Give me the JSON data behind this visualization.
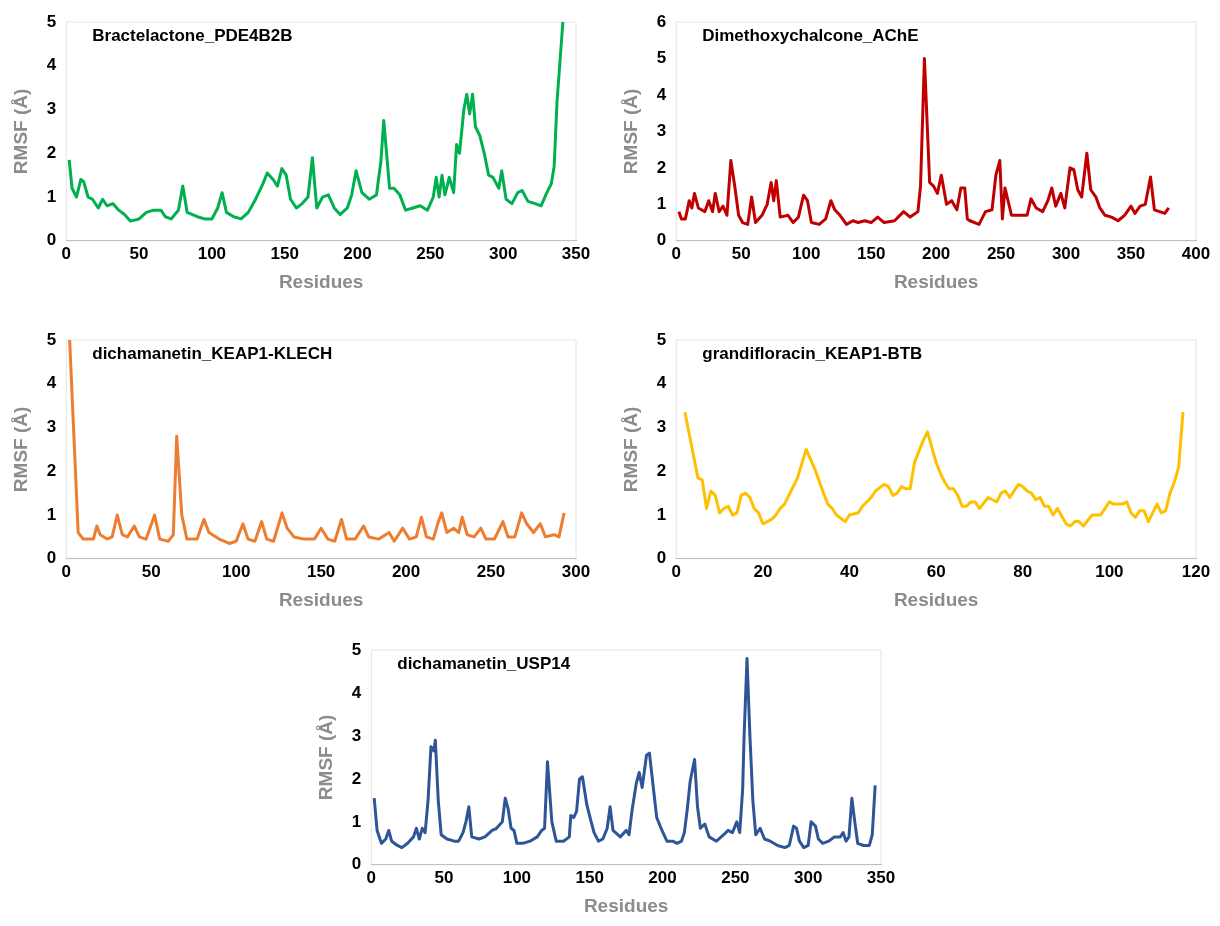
{
  "chart_data": [
    {
      "type": "line",
      "title": "Bractelactone_PDE4B2B",
      "xlabel": "Residues",
      "ylabel": "RMSF (Å)",
      "xlim": [
        0,
        350
      ],
      "xticks": [
        0,
        50,
        100,
        150,
        200,
        250,
        300,
        350
      ],
      "ylim": [
        0,
        5
      ],
      "yticks": [
        0,
        1,
        2,
        3,
        4,
        5
      ],
      "grid": false,
      "legend": false,
      "marker": "none",
      "line_style": "solid",
      "x": [
        2,
        4,
        7,
        10,
        12,
        15,
        18,
        22,
        25,
        28,
        32,
        36,
        40,
        44,
        50,
        55,
        60,
        65,
        68,
        72,
        77,
        80,
        83,
        90,
        95,
        100,
        104,
        107,
        110,
        115,
        120,
        125,
        130,
        135,
        138,
        142,
        145,
        148,
        151,
        154,
        158,
        162,
        166,
        169,
        172,
        176,
        180,
        184,
        188,
        193,
        196,
        199,
        203,
        208,
        213,
        216,
        218,
        222,
        225,
        229,
        233,
        238,
        243,
        248,
        252,
        254,
        256,
        258,
        260,
        263,
        266,
        268,
        270,
        273,
        275,
        277,
        279,
        281,
        284,
        287,
        290,
        293,
        297,
        299,
        302,
        306,
        310,
        313,
        317,
        322,
        326,
        330,
        333,
        335,
        337,
        339,
        341
      ],
      "series": [
        {
          "color": "#00b050",
          "values": [
            1.85,
            1.2,
            1.0,
            1.4,
            1.35,
            1.0,
            0.95,
            0.75,
            0.95,
            0.8,
            0.85,
            0.7,
            0.6,
            0.45,
            0.5,
            0.65,
            0.7,
            0.7,
            0.55,
            0.5,
            0.7,
            1.25,
            0.65,
            0.55,
            0.5,
            0.5,
            0.75,
            1.1,
            0.65,
            0.55,
            0.5,
            0.65,
            0.95,
            1.3,
            1.55,
            1.4,
            1.25,
            1.65,
            1.5,
            0.95,
            0.75,
            0.85,
            1.0,
            1.9,
            0.75,
            1.0,
            1.05,
            0.75,
            0.6,
            0.75,
            1.05,
            1.6,
            1.1,
            0.95,
            1.05,
            1.8,
            2.75,
            1.2,
            1.2,
            1.05,
            0.7,
            0.75,
            0.8,
            0.7,
            1.0,
            1.45,
            1.0,
            1.5,
            1.05,
            1.45,
            1.1,
            2.2,
            2.0,
            3.0,
            3.35,
            2.9,
            3.35,
            2.6,
            2.4,
            2.0,
            1.5,
            1.45,
            1.2,
            1.6,
            0.95,
            0.85,
            1.1,
            1.15,
            0.9,
            0.85,
            0.8,
            1.1,
            1.3,
            1.7,
            3.2,
            4.1,
            5.0
          ]
        }
      ]
    },
    {
      "type": "line",
      "title": "Dimethoxychalcone_AChE",
      "xlabel": "Residues",
      "ylabel": "RMSF (Å)",
      "xlim": [
        0,
        400
      ],
      "xticks": [
        0,
        50,
        100,
        150,
        200,
        250,
        300,
        350,
        400
      ],
      "ylim": [
        0,
        6
      ],
      "yticks": [
        0,
        1,
        2,
        3,
        4,
        5,
        6
      ],
      "grid": false,
      "legend": false,
      "marker": "none",
      "line_style": "solid",
      "x": [
        2,
        4,
        7,
        10,
        12,
        14,
        17,
        22,
        25,
        28,
        30,
        33,
        36,
        39,
        42,
        45,
        48,
        51,
        55,
        58,
        61,
        66,
        70,
        73,
        75,
        77,
        80,
        86,
        90,
        94,
        98,
        101,
        104,
        110,
        115,
        119,
        122,
        126,
        131,
        136,
        140,
        145,
        150,
        155,
        160,
        168,
        175,
        180,
        186,
        188,
        191,
        195,
        198,
        201,
        204,
        208,
        212,
        216,
        219,
        222,
        224,
        226,
        233,
        238,
        243,
        246,
        249,
        251,
        253,
        258,
        264,
        270,
        273,
        277,
        282,
        286,
        289,
        292,
        296,
        299,
        303,
        306,
        309,
        312,
        316,
        319,
        323,
        326,
        330,
        335,
        340,
        345,
        350,
        353,
        357,
        361,
        365,
        368,
        372,
        376,
        379
      ],
      "series": [
        {
          "color": "#c00000",
          "values": [
            0.8,
            0.6,
            0.6,
            1.1,
            0.9,
            1.3,
            0.9,
            0.8,
            1.1,
            0.8,
            1.3,
            0.8,
            0.95,
            0.7,
            2.2,
            1.5,
            0.7,
            0.5,
            0.45,
            1.2,
            0.5,
            0.7,
            1.0,
            1.6,
            1.1,
            1.65,
            0.65,
            0.7,
            0.5,
            0.65,
            1.25,
            1.1,
            0.5,
            0.45,
            0.6,
            1.1,
            0.85,
            0.7,
            0.45,
            0.55,
            0.5,
            0.55,
            0.5,
            0.65,
            0.5,
            0.55,
            0.8,
            0.65,
            0.8,
            1.5,
            5.0,
            1.6,
            1.5,
            1.3,
            1.8,
            1.0,
            1.1,
            0.85,
            1.45,
            1.45,
            0.6,
            0.55,
            0.45,
            0.8,
            0.85,
            1.8,
            2.2,
            0.6,
            1.45,
            0.7,
            0.7,
            0.7,
            1.15,
            0.9,
            0.8,
            1.1,
            1.45,
            0.95,
            1.3,
            0.9,
            2.0,
            1.95,
            1.4,
            1.2,
            2.4,
            1.4,
            1.2,
            0.9,
            0.7,
            0.65,
            0.55,
            0.7,
            0.95,
            0.75,
            0.95,
            1.0,
            1.75,
            0.85,
            0.8,
            0.75,
            0.9
          ]
        }
      ]
    },
    {
      "type": "line",
      "title": "dichamanetin_KEAP1-KLECH",
      "xlabel": "Residues",
      "ylabel": "RMSF (Å)",
      "xlim": [
        0,
        300
      ],
      "xticks": [
        0,
        50,
        100,
        150,
        200,
        250,
        300
      ],
      "ylim": [
        0,
        5
      ],
      "yticks": [
        0,
        1,
        2,
        3,
        4,
        5
      ],
      "grid": false,
      "legend": false,
      "marker": "none",
      "line_style": "solid",
      "x": [
        2,
        7,
        10,
        13,
        16,
        18,
        20,
        24,
        27,
        30,
        33,
        36,
        40,
        43,
        47,
        52,
        55,
        60,
        63,
        65,
        68,
        71,
        77,
        81,
        84,
        90,
        96,
        100,
        104,
        107,
        111,
        115,
        118,
        122,
        127,
        130,
        134,
        140,
        146,
        150,
        154,
        158,
        162,
        165,
        170,
        175,
        178,
        184,
        190,
        193,
        198,
        202,
        206,
        209,
        212,
        216,
        219,
        221,
        224,
        228,
        231,
        233,
        236,
        240,
        244,
        247,
        252,
        257,
        260,
        264,
        268,
        271,
        275,
        279,
        282,
        287,
        290,
        293
      ],
      "series": [
        {
          "color": "#ed7d31",
          "values": [
            5.0,
            0.6,
            0.45,
            0.45,
            0.45,
            0.75,
            0.55,
            0.45,
            0.5,
            1.0,
            0.55,
            0.5,
            0.75,
            0.5,
            0.45,
            1.0,
            0.45,
            0.4,
            0.55,
            2.8,
            1.0,
            0.45,
            0.45,
            0.9,
            0.6,
            0.45,
            0.35,
            0.4,
            0.8,
            0.45,
            0.4,
            0.85,
            0.45,
            0.4,
            1.05,
            0.7,
            0.5,
            0.45,
            0.45,
            0.7,
            0.45,
            0.4,
            0.9,
            0.45,
            0.45,
            0.75,
            0.5,
            0.45,
            0.6,
            0.4,
            0.7,
            0.45,
            0.5,
            0.95,
            0.5,
            0.45,
            0.85,
            1.05,
            0.6,
            0.7,
            0.6,
            0.95,
            0.55,
            0.5,
            0.7,
            0.45,
            0.45,
            0.85,
            0.5,
            0.5,
            1.05,
            0.8,
            0.6,
            0.8,
            0.5,
            0.55,
            0.5,
            1.05
          ]
        }
      ]
    },
    {
      "type": "line",
      "title": "grandifloracin_KEAP1-BTB",
      "xlabel": "Residues",
      "ylabel": "RMSF (Å)",
      "xlim": [
        0,
        120
      ],
      "xticks": [
        0,
        20,
        40,
        60,
        80,
        100,
        120
      ],
      "ylim": [
        0,
        5
      ],
      "yticks": [
        0,
        1,
        2,
        3,
        4,
        5
      ],
      "grid": false,
      "legend": false,
      "marker": "none",
      "line_style": "solid",
      "x": [
        2,
        5,
        6,
        7,
        8,
        9,
        10,
        11,
        12,
        13,
        14,
        15,
        16,
        17,
        18,
        19,
        20,
        22,
        23,
        24,
        25,
        28,
        30,
        32,
        34,
        35,
        36,
        37,
        39,
        40,
        42,
        43,
        45,
        46,
        48,
        49,
        50,
        51,
        52,
        53,
        54,
        55,
        57,
        58,
        60,
        61,
        62,
        63,
        64,
        65,
        66,
        67,
        68,
        69,
        70,
        72,
        73,
        74,
        75,
        76,
        77,
        79,
        80,
        81,
        82,
        83,
        84,
        85,
        86,
        87,
        88,
        90,
        91,
        92,
        93,
        94,
        96,
        98,
        100,
        101,
        103,
        104,
        105,
        106,
        107,
        108,
        109,
        111,
        112,
        113,
        114,
        115,
        116,
        117
      ],
      "series": [
        {
          "color": "#ffc000",
          "values": [
            3.35,
            1.85,
            1.8,
            1.15,
            1.55,
            1.45,
            1.05,
            1.15,
            1.2,
            1.0,
            1.05,
            1.45,
            1.5,
            1.4,
            1.15,
            1.05,
            0.8,
            0.9,
            1.0,
            1.15,
            1.25,
            1.85,
            2.5,
            2.05,
            1.5,
            1.25,
            1.15,
            1.0,
            0.85,
            1.0,
            1.05,
            1.2,
            1.4,
            1.55,
            1.7,
            1.65,
            1.45,
            1.5,
            1.65,
            1.6,
            1.6,
            2.2,
            2.7,
            2.9,
            2.2,
            1.95,
            1.75,
            1.6,
            1.6,
            1.45,
            1.2,
            1.2,
            1.3,
            1.3,
            1.15,
            1.4,
            1.35,
            1.3,
            1.5,
            1.55,
            1.4,
            1.7,
            1.65,
            1.55,
            1.5,
            1.35,
            1.4,
            1.2,
            1.2,
            1.0,
            1.15,
            0.8,
            0.75,
            0.85,
            0.85,
            0.75,
            1.0,
            1.0,
            1.3,
            1.25,
            1.25,
            1.3,
            1.05,
            0.95,
            1.1,
            1.1,
            0.85,
            1.25,
            1.05,
            1.1,
            1.5,
            1.75,
            2.1,
            3.35
          ]
        }
      ]
    },
    {
      "type": "line",
      "title": "dichamanetin_USP14",
      "xlabel": "Residues",
      "ylabel": "RMSF (Å)",
      "xlim": [
        0,
        350
      ],
      "xticks": [
        0,
        50,
        100,
        150,
        200,
        250,
        300,
        350
      ],
      "ylim": [
        0,
        5
      ],
      "yticks": [
        0,
        1,
        2,
        3,
        4,
        5
      ],
      "grid": false,
      "legend": false,
      "marker": "none",
      "line_style": "solid",
      "x": [
        2,
        4,
        7,
        10,
        12,
        14,
        18,
        21,
        25,
        29,
        31,
        33,
        35,
        37,
        39,
        41,
        43,
        44,
        46,
        48,
        52,
        57,
        60,
        63,
        65,
        67,
        69,
        74,
        78,
        83,
        86,
        90,
        92,
        94,
        96,
        98,
        100,
        104,
        109,
        114,
        117,
        119,
        121,
        124,
        127,
        132,
        136,
        137,
        139,
        141,
        143,
        145,
        148,
        151,
        153,
        156,
        159,
        162,
        164,
        166,
        171,
        175,
        177,
        179,
        182,
        184,
        186,
        189,
        191,
        194,
        196,
        199,
        203,
        207,
        210,
        213,
        215,
        217,
        219,
        222,
        224,
        226,
        229,
        232,
        237,
        242,
        245,
        248,
        251,
        253,
        255,
        256,
        258,
        260,
        262,
        264,
        267,
        270,
        274,
        279,
        284,
        287,
        290,
        292,
        294,
        297,
        300,
        302,
        305,
        307,
        310,
        314,
        318,
        322,
        324,
        326,
        328,
        330,
        332,
        334,
        338,
        342,
        344,
        346
      ],
      "series": [
        {
          "color": "#2f5597",
          "values": [
            1.55,
            0.8,
            0.5,
            0.6,
            0.8,
            0.55,
            0.45,
            0.4,
            0.5,
            0.65,
            0.85,
            0.6,
            0.85,
            0.75,
            1.5,
            2.75,
            2.65,
            2.9,
            1.5,
            0.7,
            0.6,
            0.55,
            0.55,
            0.75,
            1.0,
            1.35,
            0.65,
            0.6,
            0.65,
            0.8,
            0.85,
            1.0,
            1.55,
            1.3,
            0.85,
            0.8,
            0.5,
            0.5,
            0.55,
            0.65,
            0.8,
            0.85,
            2.4,
            1.0,
            0.55,
            0.55,
            0.65,
            1.15,
            1.1,
            1.25,
            2.0,
            2.05,
            1.4,
            1.0,
            0.75,
            0.55,
            0.6,
            0.85,
            1.35,
            0.8,
            0.65,
            0.8,
            0.7,
            1.25,
            1.9,
            2.15,
            1.8,
            2.55,
            2.6,
            1.7,
            1.1,
            0.85,
            0.55,
            0.55,
            0.5,
            0.55,
            0.75,
            1.3,
            1.95,
            2.45,
            1.35,
            0.85,
            0.95,
            0.65,
            0.55,
            0.7,
            0.8,
            0.75,
            1.0,
            0.75,
            1.75,
            3.0,
            4.8,
            3.0,
            1.5,
            0.7,
            0.85,
            0.6,
            0.55,
            0.45,
            0.4,
            0.45,
            0.9,
            0.85,
            0.55,
            0.4,
            0.45,
            1.0,
            0.9,
            0.6,
            0.5,
            0.55,
            0.65,
            0.65,
            0.75,
            0.55,
            0.65,
            1.55,
            1.0,
            0.5,
            0.45,
            0.45,
            0.7,
            1.85
          ]
        }
      ]
    }
  ]
}
